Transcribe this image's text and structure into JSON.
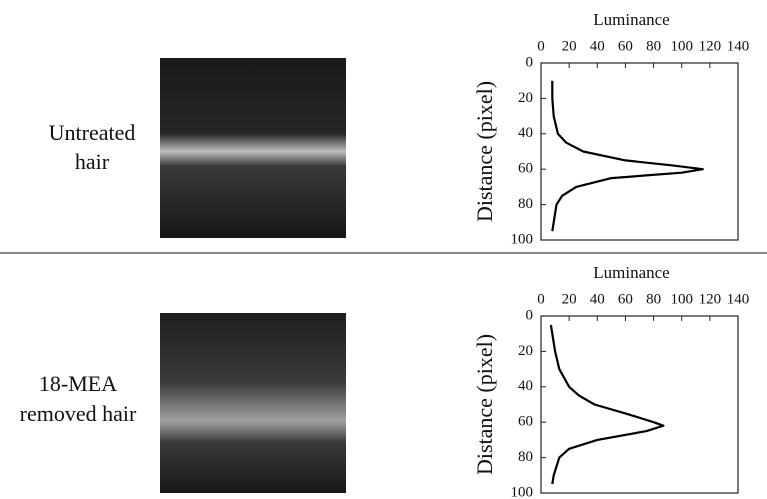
{
  "row_labels": [
    [
      "Untreated",
      "hair"
    ],
    [
      "18-MEA",
      "removed hair"
    ]
  ],
  "chart_data": [
    {
      "type": "line",
      "x_label": "Luminance",
      "y_label": "Distance (pixel)",
      "color": "#000000",
      "y": [
        10,
        20,
        30,
        40,
        45,
        50,
        55,
        58,
        60,
        62,
        65,
        70,
        75,
        80,
        90,
        95
      ],
      "values": [
        8,
        8,
        9,
        12,
        18,
        30,
        60,
        95,
        115,
        100,
        50,
        25,
        15,
        11,
        9,
        8
      ],
      "xlim": [
        0,
        140
      ],
      "xticks": [
        0,
        20,
        40,
        60,
        80,
        100,
        120,
        140
      ],
      "ylim": [
        0,
        100
      ],
      "yticks": [
        0,
        20,
        40,
        60,
        80,
        100
      ]
    },
    {
      "type": "line",
      "x_label": "Luminance",
      "y_label": "Distance (pixel)",
      "color": "#000000",
      "y": [
        5,
        20,
        30,
        40,
        45,
        50,
        55,
        60,
        62,
        65,
        70,
        75,
        80,
        90,
        95
      ],
      "values": [
        7,
        10,
        13,
        20,
        27,
        38,
        60,
        80,
        87,
        75,
        40,
        20,
        13,
        9,
        8
      ],
      "xlim": [
        0,
        140
      ],
      "xticks": [
        0,
        20,
        40,
        60,
        80,
        100,
        120,
        140
      ],
      "ylim": [
        0,
        100
      ],
      "yticks": [
        0,
        20,
        40,
        60,
        80,
        100
      ]
    }
  ]
}
